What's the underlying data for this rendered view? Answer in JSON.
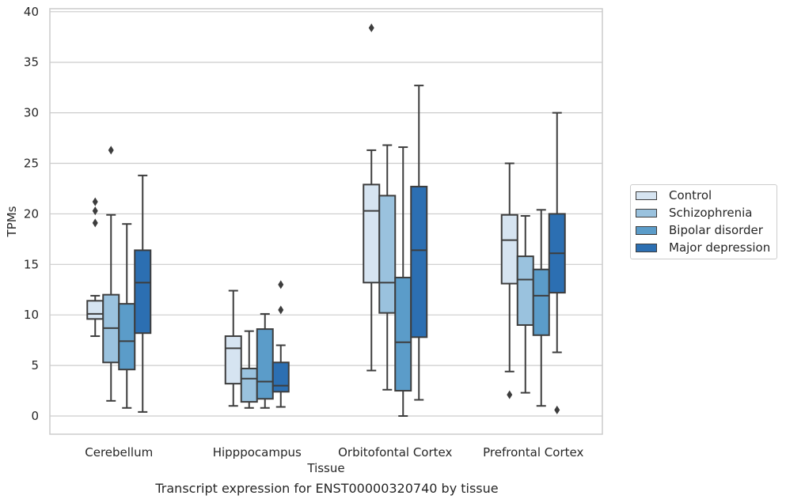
{
  "caption": "Transcript expression for ENST00000320740 by tissue",
  "chart_data": {
    "type": "box",
    "xlabel": "Tissue",
    "ylabel": "TPMs",
    "ylim": [
      -1.8,
      40.3
    ],
    "yticks": [
      0,
      5,
      10,
      15,
      20,
      25,
      30,
      35,
      40
    ],
    "grid": "horizontal",
    "legend_position": "right",
    "categories": [
      "Cerebellum",
      "Hipppocampus",
      "Orbitofontal Cortex",
      "Prefrontal Cortex"
    ],
    "series": [
      {
        "name": "Control",
        "color": "#d6e4f1",
        "boxes": [
          {
            "whislo": 7.9,
            "q1": 9.6,
            "med": 10.1,
            "q3": 11.4,
            "whishi": 11.9,
            "fliers": [
              19.1,
              20.3,
              21.2
            ]
          },
          {
            "whislo": 1.0,
            "q1": 3.2,
            "med": 6.7,
            "q3": 7.9,
            "whishi": 12.4,
            "fliers": []
          },
          {
            "whislo": 4.5,
            "q1": 13.2,
            "med": 20.3,
            "q3": 22.9,
            "whishi": 26.3,
            "fliers": [
              38.4
            ]
          },
          {
            "whislo": 4.4,
            "q1": 13.1,
            "med": 17.4,
            "q3": 19.9,
            "whishi": 25.0,
            "fliers": [
              2.1
            ]
          }
        ]
      },
      {
        "name": "Schizophrenia",
        "color": "#9ac2de",
        "boxes": [
          {
            "whislo": 1.5,
            "q1": 5.3,
            "med": 8.7,
            "q3": 12.0,
            "whishi": 19.9,
            "fliers": [
              26.3
            ]
          },
          {
            "whislo": 0.8,
            "q1": 1.4,
            "med": 3.7,
            "q3": 4.7,
            "whishi": 8.4,
            "fliers": []
          },
          {
            "whislo": 2.6,
            "q1": 10.2,
            "med": 13.2,
            "q3": 21.8,
            "whishi": 26.8,
            "fliers": []
          },
          {
            "whislo": 2.3,
            "q1": 9.0,
            "med": 13.5,
            "q3": 15.8,
            "whishi": 19.8,
            "fliers": []
          }
        ]
      },
      {
        "name": "Bipolar disorder",
        "color": "#5b9cc9",
        "boxes": [
          {
            "whislo": 0.8,
            "q1": 4.6,
            "med": 7.4,
            "q3": 11.1,
            "whishi": 19.0,
            "fliers": []
          },
          {
            "whislo": 0.8,
            "q1": 1.7,
            "med": 3.4,
            "q3": 8.6,
            "whishi": 10.1,
            "fliers": []
          },
          {
            "whislo": 0.0,
            "q1": 2.5,
            "med": 7.3,
            "q3": 13.7,
            "whishi": 26.6,
            "fliers": []
          },
          {
            "whislo": 1.0,
            "q1": 8.0,
            "med": 11.9,
            "q3": 14.5,
            "whishi": 20.4,
            "fliers": []
          }
        ]
      },
      {
        "name": "Major depression",
        "color": "#2c6fb2",
        "boxes": [
          {
            "whislo": 0.4,
            "q1": 8.2,
            "med": 13.2,
            "q3": 16.4,
            "whishi": 23.8,
            "fliers": []
          },
          {
            "whislo": 0.9,
            "q1": 2.4,
            "med": 3.0,
            "q3": 5.3,
            "whishi": 7.0,
            "fliers": [
              10.5,
              13.0
            ]
          },
          {
            "whislo": 1.6,
            "q1": 7.8,
            "med": 16.4,
            "q3": 22.7,
            "whishi": 32.7,
            "fliers": []
          },
          {
            "whislo": 6.3,
            "q1": 12.2,
            "med": 16.1,
            "q3": 20.0,
            "whishi": 30.0,
            "fliers": [
              0.6
            ]
          }
        ]
      }
    ]
  }
}
